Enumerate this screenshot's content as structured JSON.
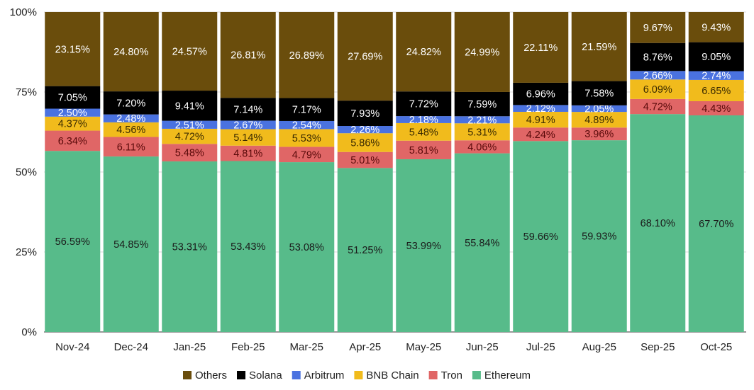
{
  "chart_data": {
    "type": "bar",
    "stacked": true,
    "percent_stacked": true,
    "categories": [
      "Nov-24",
      "Dec-24",
      "Jan-25",
      "Feb-25",
      "Mar-25",
      "Apr-25",
      "May-25",
      "Jun-25",
      "Jul-25",
      "Aug-25",
      "Sep-25",
      "Oct-25"
    ],
    "series": [
      {
        "name": "Ethereum",
        "color": "#57bb8a",
        "label_color": "#1a1a1a",
        "values": [
          56.59,
          54.85,
          53.31,
          53.43,
          53.08,
          51.25,
          53.99,
          55.84,
          59.66,
          59.93,
          68.1,
          67.7
        ]
      },
      {
        "name": "Tron",
        "color": "#e06666",
        "label_color": "#5a0a0a",
        "values": [
          6.34,
          6.11,
          5.48,
          4.81,
          4.79,
          5.01,
          5.81,
          4.06,
          4.24,
          3.96,
          4.72,
          4.43
        ]
      },
      {
        "name": "BNB Chain",
        "color": "#f1bb1c",
        "label_color": "#3a2a00",
        "values": [
          4.37,
          4.56,
          4.72,
          5.14,
          5.53,
          5.86,
          5.48,
          5.31,
          4.91,
          4.89,
          6.09,
          6.65
        ]
      },
      {
        "name": "Arbitrum",
        "color": "#4a72e0",
        "label_color": "#ffffff",
        "values": [
          2.5,
          2.48,
          2.51,
          2.67,
          2.54,
          2.26,
          2.18,
          2.21,
          2.12,
          2.05,
          2.66,
          2.74
        ]
      },
      {
        "name": "Solana",
        "color": "#000000",
        "label_color": "#ffffff",
        "values": [
          7.05,
          7.2,
          9.41,
          7.14,
          7.17,
          7.93,
          7.72,
          7.59,
          6.96,
          7.58,
          8.76,
          9.05
        ]
      },
      {
        "name": "Others",
        "color": "#6a4d0c",
        "label_color": "#ffffff",
        "values": [
          23.15,
          24.8,
          24.57,
          26.81,
          26.89,
          27.69,
          24.82,
          24.99,
          22.11,
          21.59,
          9.67,
          9.43
        ]
      }
    ],
    "legend_order": [
      "Others",
      "Solana",
      "Arbitrum",
      "BNB Chain",
      "Tron",
      "Ethereum"
    ],
    "y_ticks": [
      "0%",
      "25%",
      "50%",
      "75%",
      "100%"
    ],
    "ylim": [
      0,
      100
    ],
    "grid": true,
    "legend_position": "bottom",
    "data_labels": true
  }
}
